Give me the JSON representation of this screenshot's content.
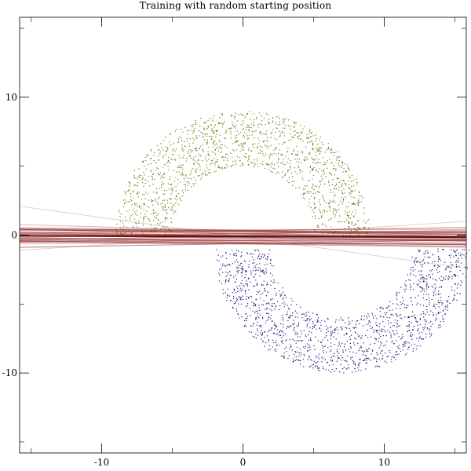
{
  "chart_data": {
    "type": "scatter",
    "title": "Training with random starting position",
    "xlabel": "",
    "ylabel": "",
    "xlim": [
      -15.8,
      15.8
    ],
    "ylim": [
      -15.8,
      15.8
    ],
    "x_ticks": [
      -10,
      0,
      10
    ],
    "y_ticks": [
      10,
      0,
      -10
    ],
    "grid": false,
    "legend": "none",
    "series": [
      {
        "shape": "half-ring",
        "center": [
          0,
          0
        ],
        "inner_radius": 5,
        "outer_radius": 9,
        "angle_range_deg": [
          0,
          180
        ],
        "color": "#6b7a12",
        "approx_points": 1500
      },
      {
        "shape": "half-ring",
        "center": [
          7,
          -1
        ],
        "inner_radius": 5,
        "outer_radius": 9,
        "angle_range_deg": [
          180,
          360
        ],
        "color": "#1a1a7a",
        "approx_points": 1500
      }
    ],
    "decision_lines": {
      "color": "#8b1a1a",
      "final_line": [
        [
          -15.8,
          -0.05
        ],
        [
          15.8,
          -0.15
        ]
      ],
      "approx_count": 45,
      "intercept_spread": 0.55,
      "slope_spread": 0.025,
      "outlier_lines": [
        [
          [
            -15.8,
            2.1
          ],
          [
            15.8,
            -2.4
          ]
        ],
        [
          [
            -15.8,
            -1.1
          ],
          [
            15.8,
            1.0
          ]
        ]
      ]
    },
    "colors": {
      "frame": "#000000",
      "background": "#ffffff"
    }
  }
}
